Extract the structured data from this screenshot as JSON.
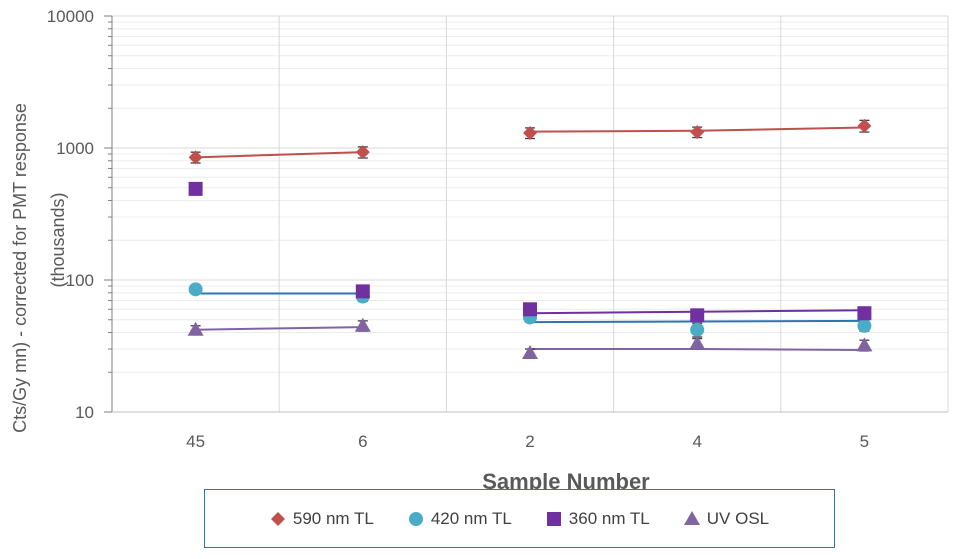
{
  "chart_data": {
    "type": "scatter",
    "categories": [
      "45",
      "6",
      "2",
      "4",
      "5"
    ],
    "xlabel": "Sample Number",
    "ylabel_line1": "Cts/Gy mn) - corrected for PMT response",
    "ylabel_line2": "(thousands)",
    "y_scale": "log",
    "ylim": [
      10,
      10000
    ],
    "y_ticks": [
      "10",
      "100",
      "1000",
      "10000"
    ],
    "grid": true,
    "legend_position": "bottom",
    "series": [
      {
        "name": "590 nm TL",
        "marker": "diamond",
        "color": "#c0504d",
        "values": [
          850,
          930,
          1300,
          1320,
          1470
        ],
        "errors": [
          80,
          90,
          120,
          120,
          150
        ],
        "trend_groups": [
          [
            0,
            1
          ],
          [
            2,
            3,
            4
          ]
        ],
        "trend_values": [
          [
            850,
            930
          ],
          [
            1330,
            1350,
            1430
          ]
        ]
      },
      {
        "name": "420 nm TL",
        "marker": "circle",
        "color": "#4bacc6",
        "values": [
          85,
          75,
          52,
          42,
          45
        ],
        "errors": [
          5,
          6,
          4,
          5,
          4
        ],
        "trend_groups": [
          [
            0,
            1
          ],
          [
            2,
            3,
            4
          ]
        ],
        "trend_values": [
          [
            79,
            79
          ],
          [
            48,
            48.5,
            49
          ]
        ]
      },
      {
        "name": "360 nm TL",
        "marker": "square",
        "color": "#7030a0",
        "values": [
          490,
          82,
          60,
          54,
          56
        ],
        "errors": [
          0,
          0,
          0,
          0,
          0
        ],
        "trend_groups": [
          [
            2,
            3,
            4
          ]
        ],
        "trend_values": [
          [
            56,
            57.5,
            59
          ]
        ]
      },
      {
        "name": "UV OSL",
        "marker": "triangle",
        "color": "#8064a2",
        "values": [
          42,
          45,
          28,
          33,
          32
        ],
        "errors": [
          3,
          4,
          2,
          3,
          3
        ],
        "trend_groups": [
          [
            0,
            1
          ],
          [
            2,
            3,
            4
          ]
        ],
        "trend_values": [
          [
            42,
            44
          ],
          [
            30,
            30,
            29.5
          ]
        ]
      }
    ]
  }
}
